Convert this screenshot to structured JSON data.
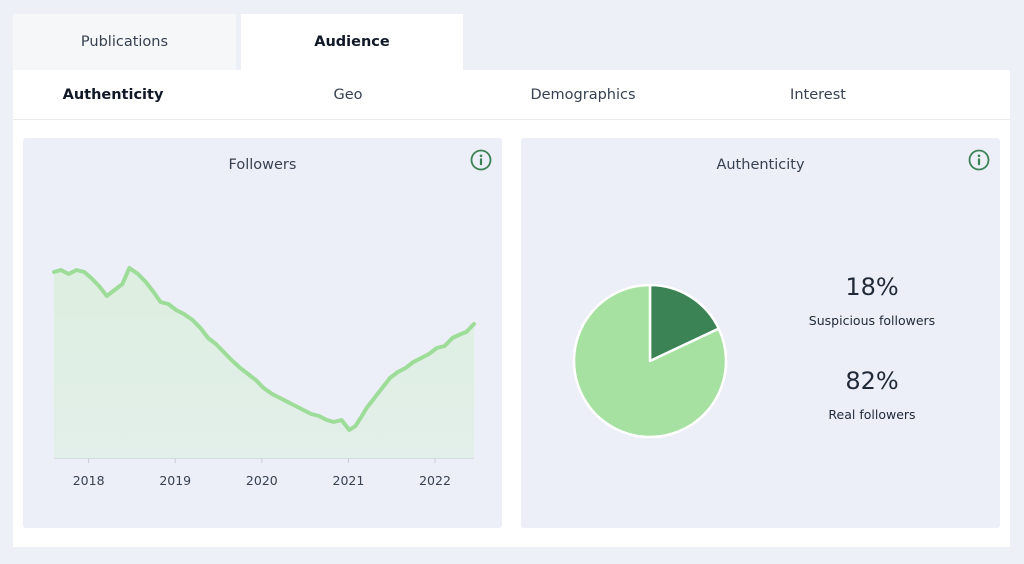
{
  "tabs": [
    {
      "label": "Publications",
      "active": false
    },
    {
      "label": "Audience",
      "active": true
    }
  ],
  "subtabs": [
    {
      "label": "Authenticity",
      "active": true
    },
    {
      "label": "Geo",
      "active": false
    },
    {
      "label": "Demographics",
      "active": false
    },
    {
      "label": "Interest",
      "active": false
    }
  ],
  "followers_card": {
    "title": "Followers",
    "info_icon": "info-circle-icon"
  },
  "authenticity_card": {
    "title": "Authenticity",
    "info_icon": "info-circle-icon",
    "stats": [
      {
        "value": "18%",
        "label": "Suspicious followers"
      },
      {
        "value": "82%",
        "label": "Real followers"
      }
    ]
  },
  "colors": {
    "line": "#9edc99",
    "area": "#dcefdf",
    "pie_dark": "#3b8255",
    "pie_light": "#a6e1a2",
    "icon": "#3b8255"
  },
  "chart_data": [
    {
      "type": "area",
      "title": "Followers",
      "x_ticks": [
        "2018",
        "2019",
        "2020",
        "2021",
        "2022"
      ],
      "x_range": [
        2017.6,
        2022.45
      ],
      "y_range": [
        0,
        100
      ],
      "x": [
        2017.6,
        2017.68,
        2017.77,
        2017.86,
        2017.95,
        2018.03,
        2018.12,
        2018.21,
        2018.3,
        2018.39,
        2018.47,
        2018.57,
        2018.66,
        2018.75,
        2018.83,
        2018.92,
        2019.01,
        2019.1,
        2019.2,
        2019.29,
        2019.38,
        2019.47,
        2019.56,
        2019.65,
        2019.75,
        2019.84,
        2019.93,
        2020.02,
        2020.12,
        2020.21,
        2020.3,
        2020.39,
        2020.48,
        2020.57,
        2020.66,
        2020.75,
        2020.83,
        2020.92,
        2021.01,
        2021.08,
        2021.14,
        2021.21,
        2021.3,
        2021.39,
        2021.48,
        2021.57,
        2021.66,
        2021.75,
        2021.84,
        2021.93,
        2022.02,
        2022.11,
        2022.2,
        2022.3,
        2022.36,
        2022.45
      ],
      "values": [
        93,
        94,
        92,
        94,
        93,
        90,
        86,
        81,
        84,
        87,
        95,
        92,
        88,
        83,
        78,
        77,
        74,
        72,
        69,
        65,
        60,
        57,
        53,
        49,
        45,
        42,
        39,
        35,
        32,
        30,
        28,
        26,
        24,
        22,
        21,
        19,
        18,
        19,
        14,
        16,
        20,
        25,
        30,
        35,
        40,
        43,
        45,
        48,
        50,
        52,
        55,
        56,
        60,
        62,
        63,
        67
      ]
    },
    {
      "type": "pie",
      "title": "Authenticity",
      "slices": [
        {
          "label": "Suspicious followers",
          "value": 18
        },
        {
          "label": "Real followers",
          "value": 82
        }
      ]
    }
  ]
}
